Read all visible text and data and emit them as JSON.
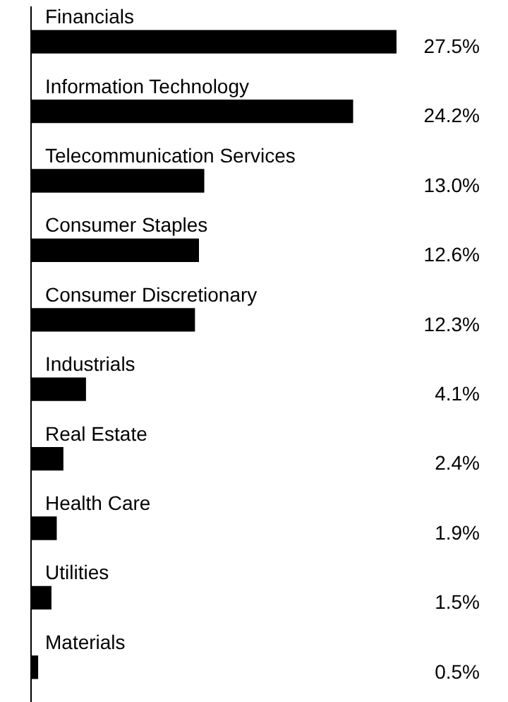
{
  "chart_data": {
    "type": "bar",
    "orientation": "horizontal",
    "categories": [
      "Financials",
      "Information Technology",
      "Telecommunication Services",
      "Consumer Staples",
      "Consumer Discretionary",
      "Industrials",
      "Real Estate",
      "Health Care",
      "Utilities",
      "Materials"
    ],
    "values": [
      27.5,
      24.2,
      13.0,
      12.6,
      12.3,
      4.1,
      2.4,
      1.9,
      1.5,
      0.5
    ],
    "value_labels": [
      "27.5%",
      "24.2%",
      "13.0%",
      "12.6%",
      "12.3%",
      "4.1%",
      "2.4%",
      "1.9%",
      "1.5%",
      "0.5%"
    ],
    "color": "#000000",
    "grid": false,
    "legend": false
  }
}
